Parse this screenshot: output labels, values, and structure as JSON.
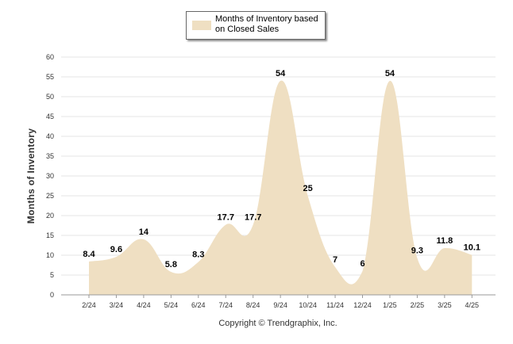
{
  "chart_data": {
    "type": "area",
    "ylabel": "Months of Inventory",
    "xlabel": "",
    "ylim": [
      0,
      60
    ],
    "yticks": [
      0,
      5,
      10,
      15,
      20,
      25,
      30,
      35,
      40,
      45,
      50,
      55,
      60
    ],
    "grid": true,
    "legend_position": "top-center",
    "categories": [
      "2/24",
      "3/24",
      "4/24",
      "5/24",
      "6/24",
      "7/24",
      "8/24",
      "9/24",
      "10/24",
      "11/24",
      "12/24",
      "1/25",
      "2/25",
      "3/25",
      "4/25"
    ],
    "series": [
      {
        "name": "Months of Inventory based on Closed Sales",
        "values": [
          8.4,
          9.6,
          14,
          5.8,
          8.3,
          17.7,
          17.7,
          54,
          25,
          7,
          6,
          54,
          9.3,
          11.8,
          10.1
        ],
        "color": "#efdfc2"
      }
    ]
  },
  "legend": {
    "label": "Months of Inventory based on Closed Sales"
  },
  "footer": {
    "copyright": "Copyright © Trendgraphix, Inc."
  }
}
